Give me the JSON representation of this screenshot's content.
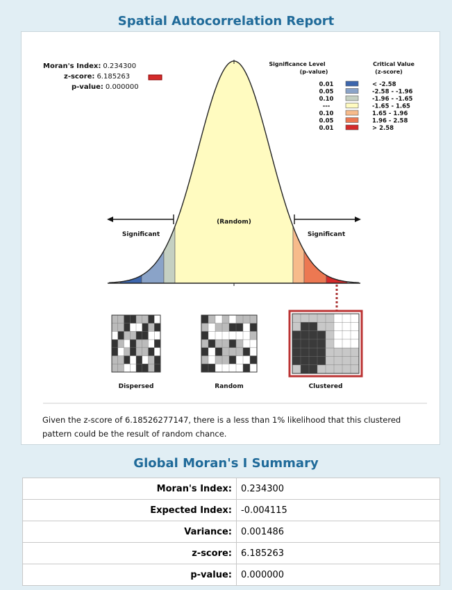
{
  "header": {
    "title": "Spatial Autocorrelation Report"
  },
  "diagram": {
    "stats": [
      {
        "label": "Moran's Index:",
        "value": "0.234300"
      },
      {
        "label": "z-score:",
        "value": "6.185263"
      },
      {
        "label": "p-value:",
        "value": "0.000000"
      }
    ],
    "legend": {
      "sig_header": [
        "Significance Level",
        "(p-value)"
      ],
      "crit_header": [
        "Critical Value",
        "(z-score)"
      ],
      "rows": [
        {
          "p": "0.01",
          "z": "< -2.58",
          "color": "#3d66ad"
        },
        {
          "p": "0.05",
          "z": "-2.58 - -1.96",
          "color": "#8aa3c8"
        },
        {
          "p": "0.10",
          "z": "-1.96 - -1.65",
          "color": "#c5d0c2"
        },
        {
          "p": "---",
          "z": "-1.65 - 1.65",
          "color": "#fffbc0"
        },
        {
          "p": "0.10",
          "z": "1.65 - 1.96",
          "color": "#f7bb8b"
        },
        {
          "p": "0.05",
          "z": "1.96 - 2.58",
          "color": "#ec7852"
        },
        {
          "p": "0.01",
          "z": "> 2.58",
          "color": "#d42a2a"
        }
      ]
    },
    "labels": {
      "left": "Significant",
      "center": "(Random)",
      "right": "Significant"
    },
    "maps": [
      "Dispersed",
      "Random",
      "Clustered"
    ]
  },
  "note": "Given the z-score of 6.18526277147, there is a less than 1% likelihood that this clustered pattern could be the result of random chance.",
  "summary": {
    "title": "Global Moran's I Summary",
    "rows": [
      [
        "Moran's Index:",
        "0.234300"
      ],
      [
        "Expected Index:",
        "-0.004115"
      ],
      [
        "Variance:",
        "0.001486"
      ],
      [
        "z-score:",
        "6.185263"
      ],
      [
        "p-value:",
        "0.000000"
      ]
    ]
  }
}
